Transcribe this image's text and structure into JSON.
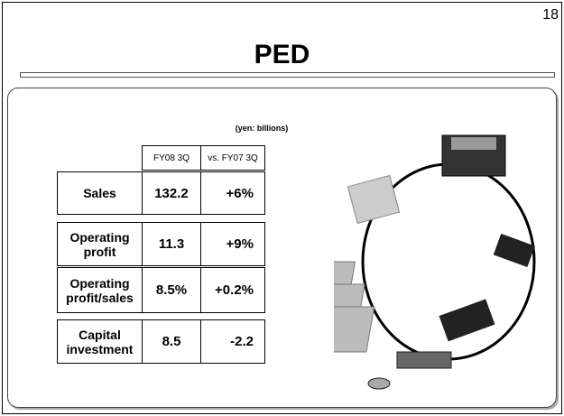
{
  "page_number": "18",
  "title": "PED",
  "unit_note": "(yen: billions)",
  "table": {
    "columns": [
      "FY08 3Q",
      "vs. FY07 3Q"
    ],
    "rows": [
      [
        "Sales",
        "132.2",
        "+6%"
      ],
      [
        "Operating profit",
        "11.3",
        "+9%"
      ],
      [
        "Operating profit/sales",
        "8.5%",
        "+0.2%"
      ],
      [
        "Capital investment",
        "8.5",
        "-2.2"
      ]
    ]
  }
}
